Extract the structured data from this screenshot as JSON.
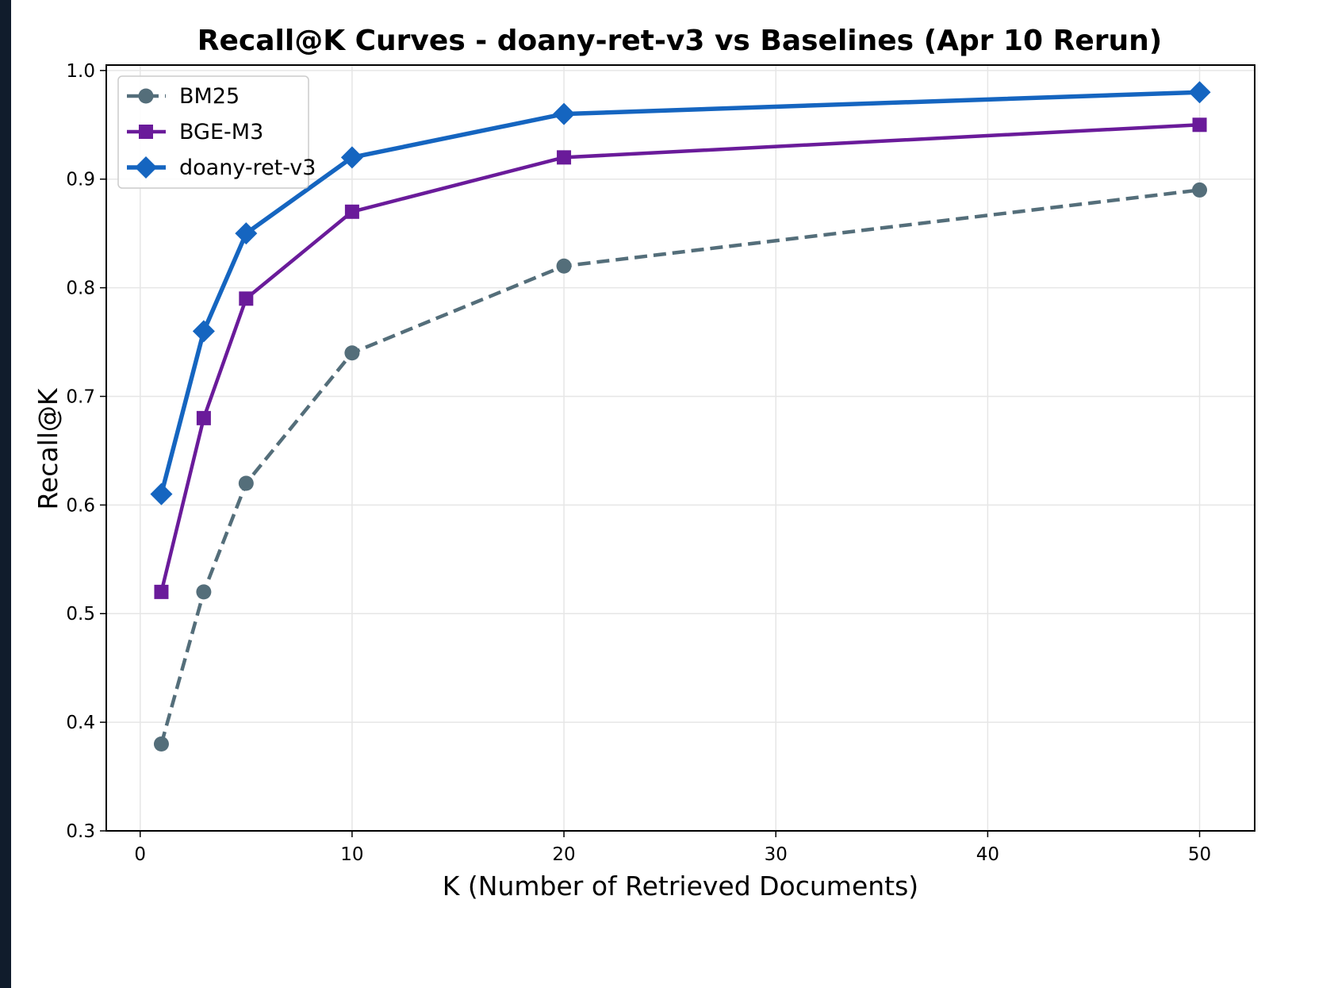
{
  "chart_data": {
    "type": "line",
    "title": "Recall@K Curves - doany-ret-v3 vs Baselines (Apr 10 Rerun)",
    "xlabel": "K (Number of Retrieved Documents)",
    "ylabel": "Recall@K",
    "xlim": [
      -1.6,
      52.6
    ],
    "ylim": [
      0.3,
      1.005
    ],
    "xticks": [
      0,
      10,
      20,
      30,
      40,
      50
    ],
    "xtick_labels": [
      "0",
      "10",
      "20",
      "30",
      "40",
      "50"
    ],
    "yticks": [
      0.3,
      0.4,
      0.5,
      0.6,
      0.7,
      0.8,
      0.9,
      1.0
    ],
    "ytick_labels": [
      "0.3",
      "0.4",
      "0.5",
      "0.6",
      "0.7",
      "0.8",
      "0.9",
      "1.0"
    ],
    "grid": true,
    "legend_position": "top-left",
    "x": [
      1,
      3,
      5,
      10,
      20,
      50
    ],
    "series": [
      {
        "name": "BM25",
        "values": [
          0.38,
          0.52,
          0.62,
          0.74,
          0.82,
          0.89
        ],
        "color": "#546e7a",
        "marker": "circle",
        "line_style": "dashed"
      },
      {
        "name": "BGE-M3",
        "values": [
          0.52,
          0.68,
          0.79,
          0.87,
          0.92,
          0.95
        ],
        "color": "#6a1b9a",
        "marker": "square",
        "line_style": "solid"
      },
      {
        "name": "doany-ret-v3",
        "values": [
          0.61,
          0.76,
          0.85,
          0.92,
          0.96,
          0.98
        ],
        "color": "#1565c0",
        "marker": "diamond",
        "line_style": "solid"
      }
    ]
  }
}
